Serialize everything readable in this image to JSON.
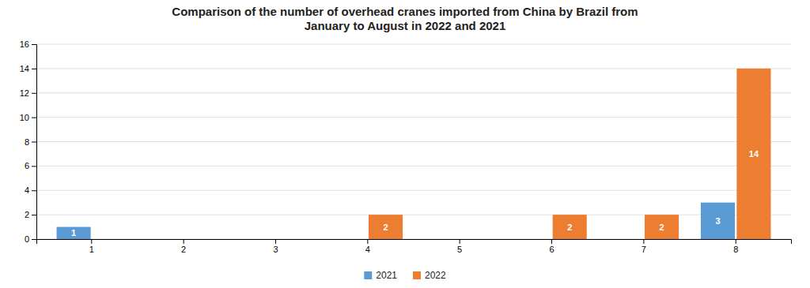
{
  "chart_data": {
    "type": "bar",
    "title": "Comparison of the number of overhead cranes imported from China by Brazil from\nJanuary to August in 2022 and 2021",
    "categories": [
      "1",
      "2",
      "3",
      "4",
      "5",
      "6",
      "7",
      "8"
    ],
    "series": [
      {
        "name": "2021",
        "color": "#5B9BD5",
        "values": [
          1,
          0,
          0,
          0,
          0,
          0,
          0,
          3
        ]
      },
      {
        "name": "2022",
        "color": "#ED7D31",
        "values": [
          0,
          0,
          0,
          2,
          0,
          2,
          2,
          14
        ]
      }
    ],
    "ylim": [
      0,
      16
    ],
    "yticks": [
      0,
      2,
      4,
      6,
      8,
      10,
      12,
      14,
      16
    ],
    "grid": true,
    "legend": "bottom",
    "data_labels": true
  }
}
